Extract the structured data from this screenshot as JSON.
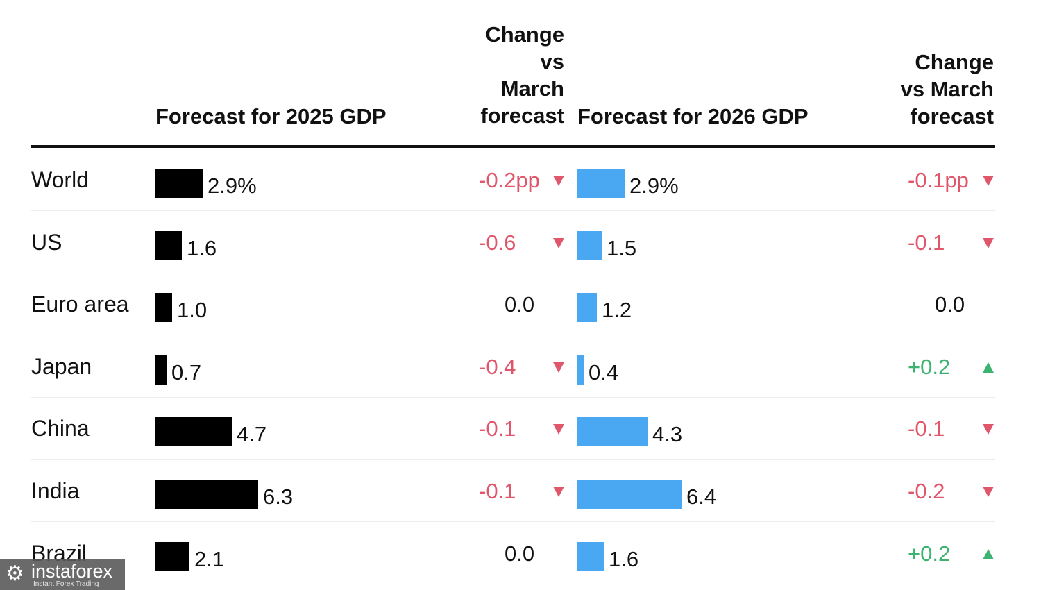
{
  "headers": {
    "forecast_2025": "Forecast for 2025 GDP",
    "change_2025": [
      "Change",
      "vs",
      "March",
      "forecast"
    ],
    "forecast_2026": "Forecast for 2026 GDP",
    "change_2026": [
      "Change",
      "vs March",
      "forecast"
    ]
  },
  "colors": {
    "bar_2025": "#000000",
    "bar_2026": "#4aa8f2",
    "negative": "#e0566a",
    "positive": "#3cb371",
    "neutral": "#111111"
  },
  "chart_data": {
    "type": "bar",
    "title": "",
    "xlabel": "",
    "ylabel": "",
    "xlim": [
      0,
      7
    ],
    "categories": [
      "World",
      "US",
      "Euro area",
      "Japan",
      "China",
      "India",
      "Brazil"
    ],
    "series": [
      {
        "name": "Forecast for 2025 GDP",
        "values": [
          2.9,
          1.6,
          1.0,
          0.7,
          4.7,
          6.3,
          2.1
        ],
        "labels": [
          "2.9%",
          "1.6",
          "1.0",
          "0.7",
          "4.7",
          "6.3",
          "2.1"
        ]
      },
      {
        "name": "Forecast for 2026 GDP",
        "values": [
          2.9,
          1.5,
          1.2,
          0.4,
          4.3,
          6.4,
          1.6
        ],
        "labels": [
          "2.9%",
          "1.5",
          "1.2",
          "0.4",
          "4.3",
          "6.4",
          "1.6"
        ]
      }
    ],
    "change_2025": [
      {
        "text": "-0.2pp",
        "direction": "down"
      },
      {
        "text": "-0.6",
        "direction": "down"
      },
      {
        "text": "0.0",
        "direction": "none"
      },
      {
        "text": "-0.4",
        "direction": "down"
      },
      {
        "text": "-0.1",
        "direction": "down"
      },
      {
        "text": "-0.1",
        "direction": "down"
      },
      {
        "text": "0.0",
        "direction": "none"
      }
    ],
    "change_2026": [
      {
        "text": "-0.1pp",
        "direction": "down"
      },
      {
        "text": "-0.1",
        "direction": "down"
      },
      {
        "text": "0.0",
        "direction": "none"
      },
      {
        "text": "+0.2",
        "direction": "up"
      },
      {
        "text": "-0.1",
        "direction": "down"
      },
      {
        "text": "-0.2",
        "direction": "down"
      },
      {
        "text": "+0.2",
        "direction": "up"
      }
    ]
  },
  "watermark": {
    "brand": "instaforex",
    "tagline": "Instant Forex Trading",
    "icon": "gear-logo-icon"
  }
}
